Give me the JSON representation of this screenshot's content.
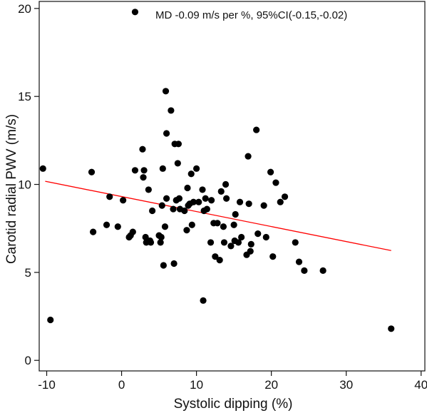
{
  "chart_data": {
    "type": "scatter",
    "title": "",
    "xlabel": "Systolic dipping (%)",
    "ylabel": "Carotid radial PWV (m/s)",
    "xlim": [
      -11,
      40.5
    ],
    "ylim": [
      -0.6,
      20.4
    ],
    "xticks": [
      -10,
      0,
      10,
      20,
      30,
      40
    ],
    "yticks": [
      0,
      5,
      10,
      15,
      20
    ],
    "xtick_labels": [
      "-10",
      "0",
      "10",
      "20",
      "30",
      "40"
    ],
    "ytick_labels": [
      "0",
      "5",
      "10",
      "15",
      "20"
    ],
    "grid": false,
    "legend": "none",
    "annotation": "MD -0.09 m/s per %, 95%CI(-0.15,-0.02)",
    "marker_color": "#000000",
    "fit_line_color": "#ff0000",
    "series": [
      {
        "points": [
          [
            1.8,
            19.8
          ],
          [
            -10.5,
            10.9
          ],
          [
            -9.5,
            2.3
          ],
          [
            -4,
            10.7
          ],
          [
            -3.8,
            7.3
          ],
          [
            -1.6,
            9.3
          ],
          [
            -2,
            7.7
          ],
          [
            -0.5,
            7.6
          ],
          [
            0.2,
            9.1
          ],
          [
            1.0,
            7.0
          ],
          [
            1.2,
            7.1
          ],
          [
            1.5,
            7.3
          ],
          [
            1.8,
            10.8
          ],
          [
            2.8,
            12.0
          ],
          [
            3.0,
            10.8
          ],
          [
            2.9,
            10.4
          ],
          [
            3.2,
            7.0
          ],
          [
            3.3,
            6.7
          ],
          [
            3.6,
            9.7
          ],
          [
            3.8,
            6.8
          ],
          [
            3.9,
            6.7
          ],
          [
            4.1,
            8.5
          ],
          [
            5.0,
            7.1
          ],
          [
            5.2,
            6.7
          ],
          [
            5.3,
            7.0
          ],
          [
            5.4,
            8.8
          ],
          [
            5.5,
            10.9
          ],
          [
            5.6,
            5.4
          ],
          [
            5.8,
            7.6
          ],
          [
            5.9,
            15.3
          ],
          [
            6.0,
            12.9
          ],
          [
            6.0,
            9.2
          ],
          [
            6.6,
            14.2
          ],
          [
            6.9,
            8.6
          ],
          [
            7.0,
            5.5
          ],
          [
            7.1,
            12.3
          ],
          [
            7.3,
            9.1
          ],
          [
            7.5,
            11.2
          ],
          [
            7.6,
            12.3
          ],
          [
            7.7,
            9.2
          ],
          [
            7.8,
            8.6
          ],
          [
            8.4,
            8.5
          ],
          [
            8.8,
            9.8
          ],
          [
            8.7,
            7.4
          ],
          [
            8.9,
            8.8
          ],
          [
            9.1,
            8.9
          ],
          [
            9.3,
            10.6
          ],
          [
            9.4,
            7.7
          ],
          [
            9.6,
            9.0
          ],
          [
            10.0,
            10.9
          ],
          [
            10.3,
            9.0
          ],
          [
            10.8,
            9.7
          ],
          [
            11.0,
            8.5
          ],
          [
            10.9,
            3.4
          ],
          [
            11.2,
            9.2
          ],
          [
            11.4,
            8.6
          ],
          [
            11.9,
            6.7
          ],
          [
            12.0,
            9.1
          ],
          [
            12.3,
            7.8
          ],
          [
            12.5,
            5.9
          ],
          [
            12.8,
            7.8
          ],
          [
            13.1,
            5.7
          ],
          [
            13.3,
            9.6
          ],
          [
            13.6,
            7.6
          ],
          [
            13.7,
            6.7
          ],
          [
            13.9,
            10.0
          ],
          [
            14.0,
            9.2
          ],
          [
            14.6,
            6.5
          ],
          [
            15.0,
            7.7
          ],
          [
            15.1,
            6.8
          ],
          [
            15.2,
            8.3
          ],
          [
            15.6,
            6.7
          ],
          [
            15.8,
            9.0
          ],
          [
            16.0,
            7.0
          ],
          [
            16.7,
            6.0
          ],
          [
            16.9,
            11.6
          ],
          [
            17.0,
            8.9
          ],
          [
            17.2,
            6.2
          ],
          [
            17.3,
            6.6
          ],
          [
            18.0,
            13.1
          ],
          [
            18.2,
            7.2
          ],
          [
            19.0,
            8.8
          ],
          [
            19.3,
            7.0
          ],
          [
            19.9,
            10.7
          ],
          [
            20.2,
            5.9
          ],
          [
            20.6,
            10.1
          ],
          [
            21.2,
            9.0
          ],
          [
            21.8,
            9.3
          ],
          [
            23.2,
            6.7
          ],
          [
            23.7,
            5.6
          ],
          [
            24.4,
            5.1
          ],
          [
            26.9,
            5.1
          ],
          [
            36.0,
            1.8
          ]
        ]
      }
    ],
    "fit_line": {
      "x": [
        -10.2,
        36.0
      ],
      "y": [
        10.18,
        6.24
      ]
    }
  }
}
